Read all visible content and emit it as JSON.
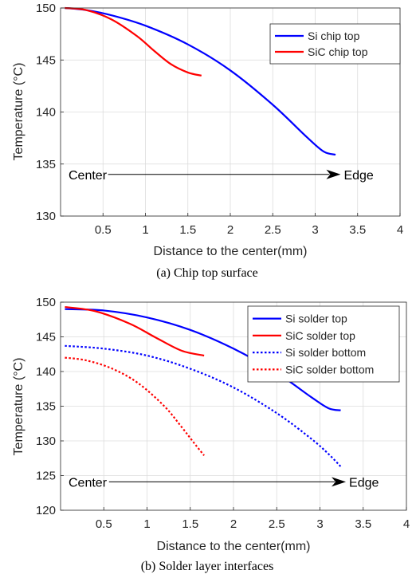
{
  "chart_data": [
    {
      "type": "line",
      "caption": "(a) Chip top surface",
      "xlabel": "Distance to the center(mm)",
      "ylabel": "Temperature (°C)",
      "xlim": [
        0,
        4
      ],
      "ylim": [
        130,
        150
      ],
      "xticks": [
        0.5,
        1,
        1.5,
        2,
        2.5,
        3,
        3.5,
        4
      ],
      "xtick_labels": [
        "0.5",
        "1",
        "1.5",
        "2",
        "2.5",
        "3",
        "3.5",
        "4"
      ],
      "yticks": [
        130,
        135,
        140,
        145,
        150
      ],
      "ytick_labels": [
        "130",
        "135",
        "140",
        "145",
        "150"
      ],
      "grid": true,
      "legend_position": "top-right",
      "annotation": {
        "start_label": "Center",
        "end_label": "Edge",
        "y": 134.0,
        "x_start": 0.56,
        "x_end": 3.3
      },
      "series": [
        {
          "name": "Si chip top",
          "color": "#0000ff",
          "style": "solid",
          "x": [
            0.05,
            0.3,
            0.6,
            1.0,
            1.5,
            2.0,
            2.5,
            2.9,
            3.1,
            3.24
          ],
          "y": [
            150,
            149.8,
            149.3,
            148.3,
            146.5,
            144.0,
            140.7,
            137.6,
            136.2,
            135.9
          ]
        },
        {
          "name": "SiC chip top",
          "color": "#ff0000",
          "style": "solid",
          "x": [
            0.05,
            0.3,
            0.6,
            0.9,
            1.1,
            1.3,
            1.5,
            1.66
          ],
          "y": [
            150,
            149.8,
            148.9,
            147.3,
            145.9,
            144.6,
            143.8,
            143.5
          ]
        }
      ]
    },
    {
      "type": "line",
      "caption": "(b) Solder layer interfaces",
      "xlabel": "Distance to the center(mm)",
      "ylabel": "Temperature (°C)",
      "xlim": [
        0,
        4
      ],
      "ylim": [
        120,
        150
      ],
      "xticks": [
        0.5,
        1,
        1.5,
        2,
        2.5,
        3,
        3.5,
        4
      ],
      "xtick_labels": [
        "0.5",
        "1",
        "1.5",
        "2",
        "2.5",
        "3",
        "3.5",
        "4"
      ],
      "yticks": [
        120,
        125,
        130,
        135,
        140,
        145,
        150
      ],
      "ytick_labels": [
        "120",
        "125",
        "130",
        "135",
        "140",
        "145",
        "150"
      ],
      "grid": true,
      "legend_position": "top-right",
      "annotation": {
        "start_label": "Center",
        "end_label": "Edge",
        "y": 124.1,
        "x_start": 0.56,
        "x_end": 3.3
      },
      "series": [
        {
          "name": "Si solder top",
          "color": "#0000ff",
          "style": "solid",
          "x": [
            0.05,
            0.5,
            1.0,
            1.5,
            2.0,
            2.5,
            2.9,
            3.1,
            3.24
          ],
          "y": [
            149.0,
            148.8,
            147.8,
            146.0,
            143.3,
            139.8,
            136.3,
            134.7,
            134.4
          ]
        },
        {
          "name": "SiC solder top",
          "color": "#ff0000",
          "style": "solid",
          "x": [
            0.05,
            0.4,
            0.8,
            1.1,
            1.4,
            1.66
          ],
          "y": [
            149.3,
            148.7,
            146.9,
            144.9,
            143.0,
            142.3
          ]
        },
        {
          "name": "Si solder bottom",
          "color": "#0000ff",
          "style": "dotted",
          "x": [
            0.05,
            0.5,
            1.0,
            1.5,
            2.0,
            2.5,
            2.9,
            3.1,
            3.24
          ],
          "y": [
            143.7,
            143.3,
            142.3,
            140.4,
            137.7,
            134.0,
            130.3,
            128.1,
            126.3
          ]
        },
        {
          "name": "SiC solder bottom",
          "color": "#ff0000",
          "style": "dotted",
          "x": [
            0.05,
            0.3,
            0.6,
            0.9,
            1.2,
            1.4,
            1.55,
            1.66
          ],
          "y": [
            142.0,
            141.6,
            140.4,
            138.3,
            135.0,
            132.0,
            129.6,
            127.9
          ]
        }
      ]
    }
  ]
}
